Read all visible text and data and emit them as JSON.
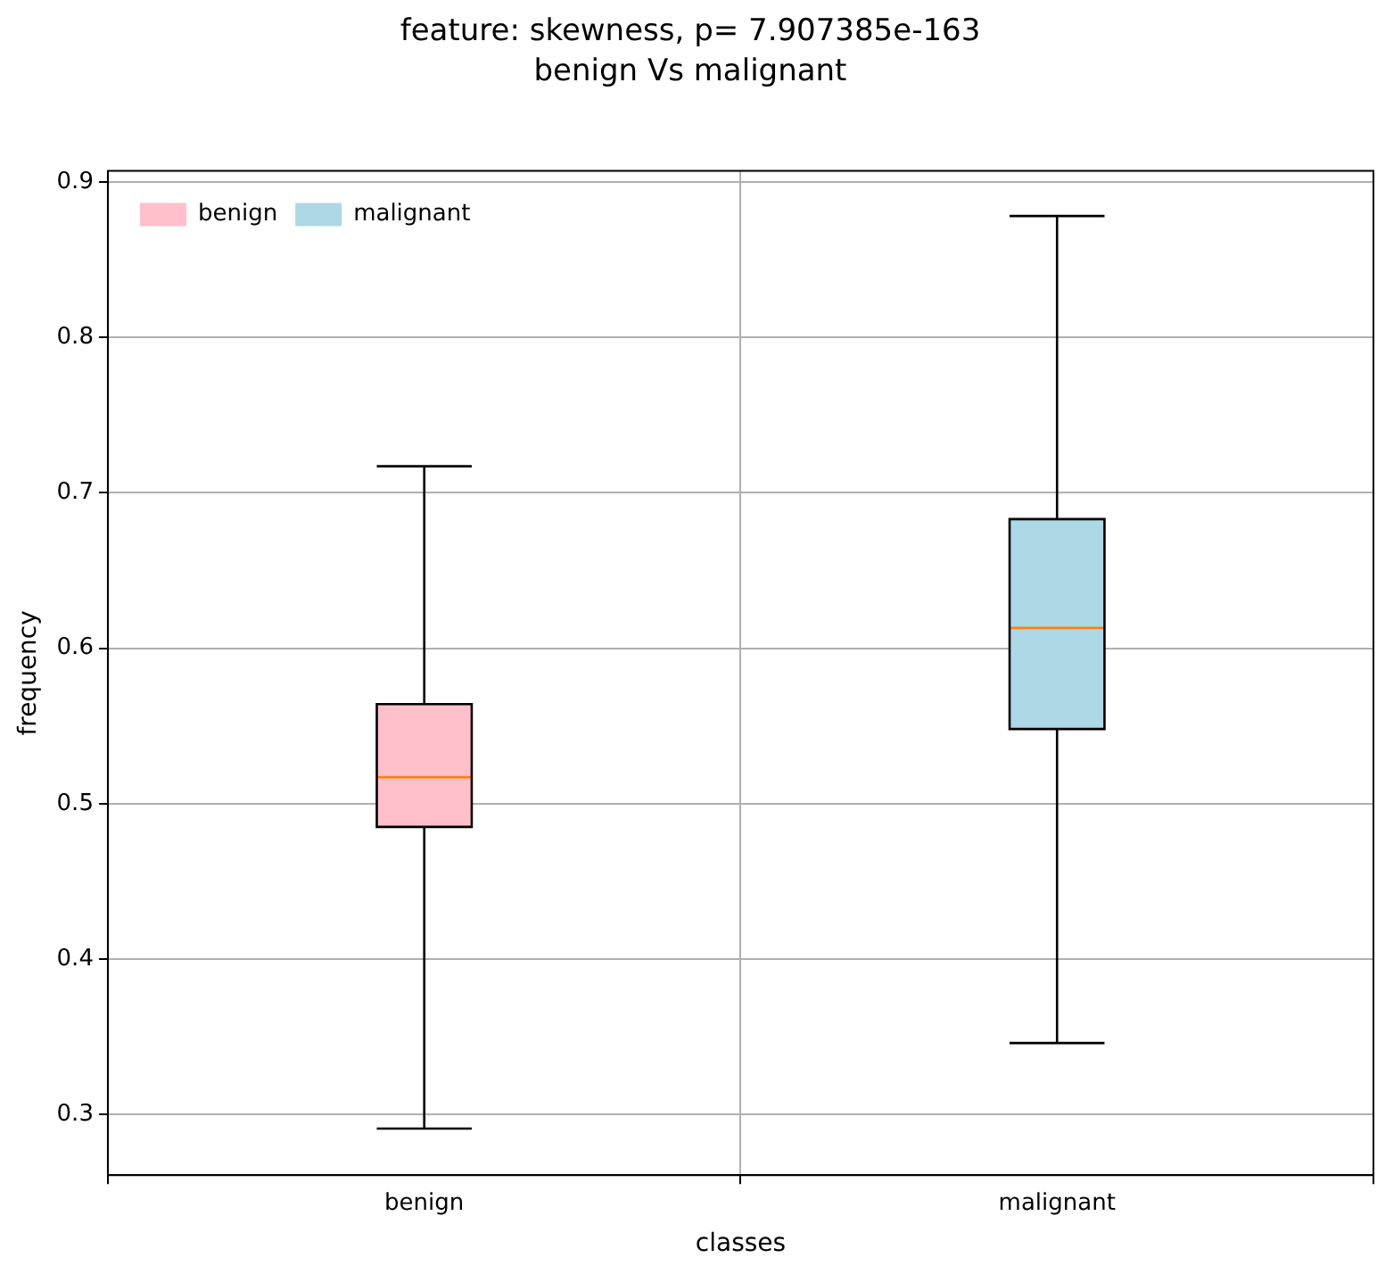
{
  "chart_data": {
    "type": "box",
    "title": "feature: skewness, p= 7.907385e-163",
    "subtitle": "benign Vs malignant",
    "xlabel": "classes",
    "ylabel": "frequency",
    "categories": [
      "benign",
      "malignant"
    ],
    "series": [
      {
        "name": "benign",
        "color": "#ffc0cb",
        "boxes": [
          {
            "low": 0.291,
            "q1": 0.485,
            "median": 0.517,
            "q3": 0.564,
            "high": 0.717
          },
          null
        ]
      },
      {
        "name": "malignant",
        "color": "#add8e6",
        "boxes": [
          null,
          {
            "low": 0.346,
            "q1": 0.548,
            "median": 0.613,
            "q3": 0.683,
            "high": 0.878
          }
        ]
      }
    ],
    "ylim": [
      0.261,
      0.907
    ],
    "yticks": [
      0.3,
      0.4,
      0.5,
      0.6,
      0.7,
      0.8,
      0.9
    ],
    "grid": true,
    "legend": "top left"
  }
}
